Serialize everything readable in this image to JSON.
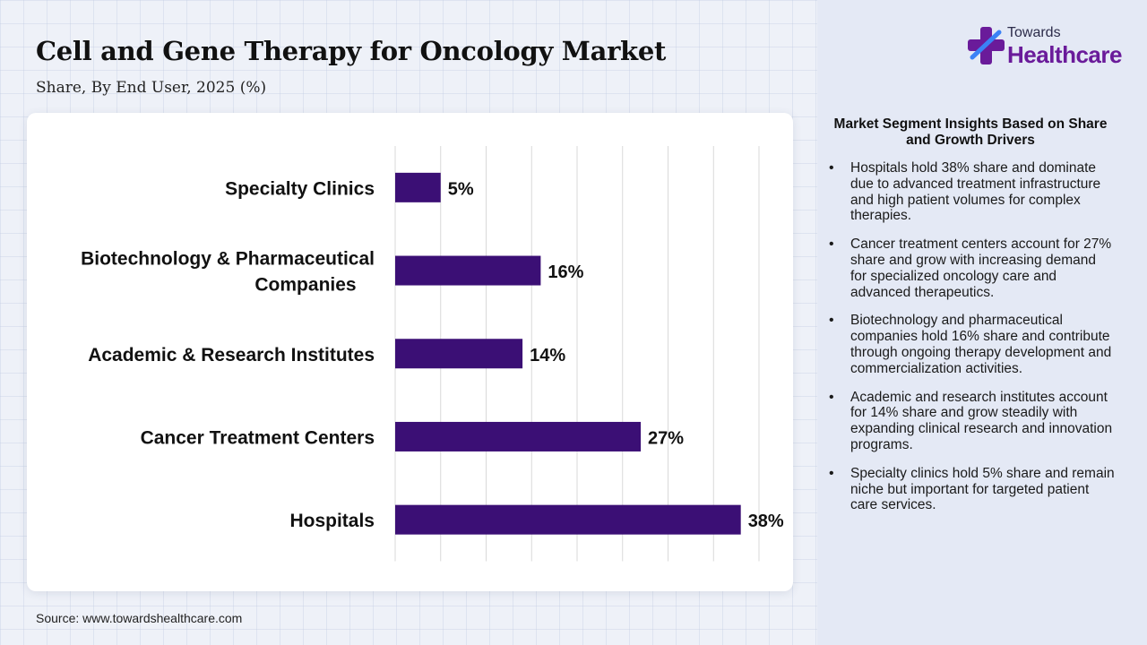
{
  "header": {
    "title": "Cell and Gene Therapy for Oncology Market",
    "subtitle": "Share, By End User, 2025 (%)"
  },
  "logo": {
    "top_text": "Towards",
    "main_text": "Healthcare"
  },
  "colors": {
    "bar": "#3b0f75",
    "logo_purple": "#6a1b9a",
    "logo_blue": "#3b82f6"
  },
  "chart_data": {
    "type": "bar",
    "orientation": "horizontal",
    "categories": [
      "Specialty Clinics",
      "Biotechnology & Pharmaceutical Companies",
      "Academic & Research Institutes",
      "Cancer Treatment Centers",
      "Hospitals"
    ],
    "category_lines": [
      [
        "Specialty Clinics"
      ],
      [
        "Biotechnology & Pharmaceutical",
        "Companies"
      ],
      [
        "Academic & Research Institutes"
      ],
      [
        "Cancer Treatment Centers"
      ],
      [
        "Hospitals"
      ]
    ],
    "values": [
      5,
      16,
      14,
      27,
      38
    ],
    "data_labels": [
      "5%",
      "16%",
      "14%",
      "27%",
      "38%"
    ],
    "xlim": [
      0,
      40
    ],
    "grid": true,
    "title": "",
    "xlabel": "",
    "ylabel": ""
  },
  "insights": {
    "title": "Market Segment Insights Based on Share and Growth Drivers",
    "items": [
      "Hospitals hold 38% share and dominate due to advanced treatment infrastructure and high patient volumes for complex therapies.",
      "Cancer treatment centers account for 27% share and grow with increasing demand for specialized oncology care and advanced therapeutics.",
      "Biotechnology and pharmaceutical companies hold 16% share and contribute through ongoing therapy development and commercialization activities.",
      "Academic and research institutes account for 14% share and grow steadily with expanding clinical research and innovation programs.",
      "Specialty clinics hold 5% share and remain niche but important for targeted patient care services."
    ]
  },
  "footer": {
    "source": "Source: www.towardshealthcare.com"
  }
}
